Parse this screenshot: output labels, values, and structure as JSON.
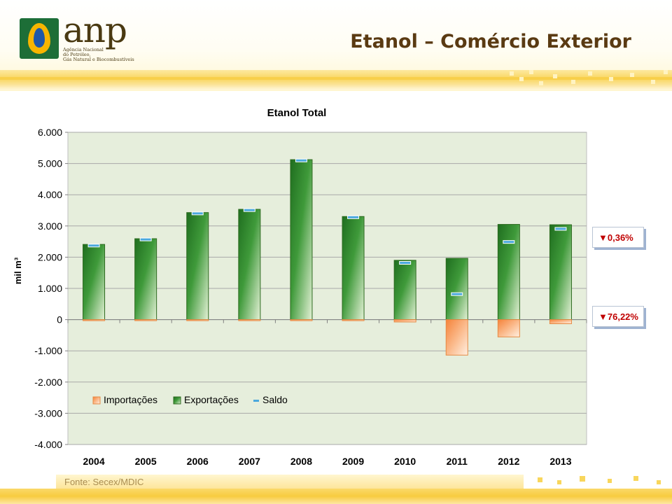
{
  "header": {
    "logo_text": "anp",
    "logo_subtitle": "Agência Nacional\ndo Petróleo,\nGás Natural e Biocombustíveis",
    "title": "Etanol – Comércio Exterior"
  },
  "source": "Fonte: Secex/MDIC",
  "callouts": [
    {
      "arrow": "▼",
      "text": "0,36%"
    },
    {
      "arrow": "▼",
      "text": "76,22%"
    }
  ],
  "colors": {
    "exports": "#2e8b2e",
    "imports": "#f7a15a",
    "saldo": "#4aa8dd",
    "plot_bg": "#e6eedc",
    "callout_text": "#c00000"
  },
  "chart_data": {
    "type": "bar",
    "title": "Etanol Total",
    "ylabel": "mil m³",
    "xlabel": "",
    "ylim": [
      -4000,
      6000
    ],
    "ytick_step": 1000,
    "ytick_labels": [
      "6.000",
      "5.000",
      "4.000",
      "3.000",
      "2.000",
      "1.000",
      "0",
      "-1.000",
      "-2.000",
      "-3.000",
      "-4.000"
    ],
    "categories": [
      "2004",
      "2005",
      "2006",
      "2007",
      "2008",
      "2009",
      "2010",
      "2011",
      "2012",
      "2013"
    ],
    "series": [
      {
        "name": "Importações",
        "kind": "bar",
        "values": [
          -5,
          -5,
          -5,
          -5,
          -5,
          -5,
          -76,
          -1137,
          -554,
          -132
        ]
      },
      {
        "name": "Exportações",
        "kind": "bar",
        "values": [
          2409,
          2592,
          3429,
          3533,
          5124,
          3303,
          1900,
          1964,
          3050,
          3039
        ]
      },
      {
        "name": "Saldo",
        "kind": "marker",
        "values": [
          2372,
          2568,
          3402,
          3508,
          5098,
          3279,
          1818,
          817,
          2488,
          2907
        ]
      }
    ],
    "legend_position": "lower-left"
  }
}
